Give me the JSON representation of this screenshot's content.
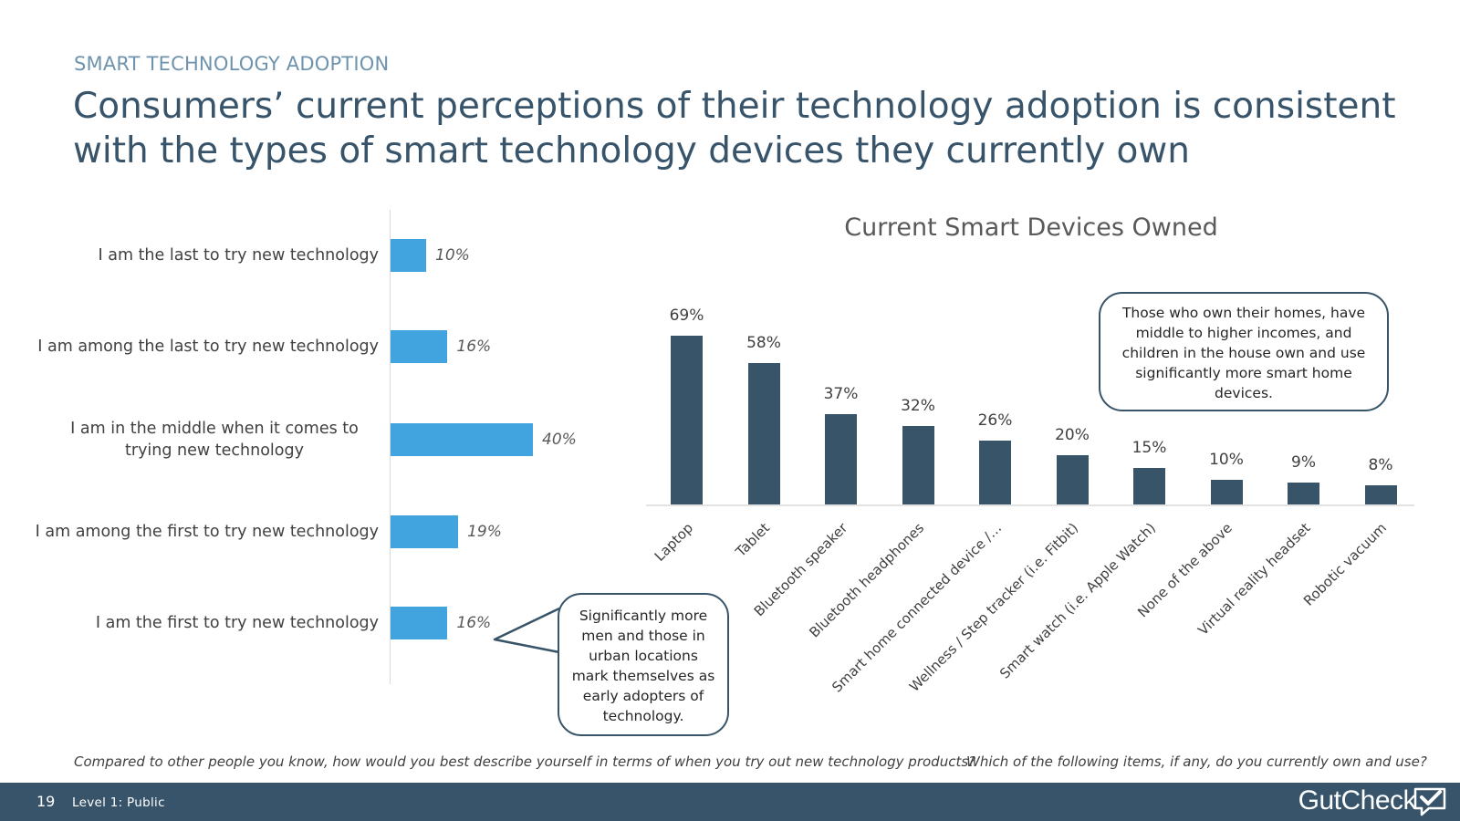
{
  "header": {
    "eyebrow": "SMART TECHNOLOGY ADOPTION",
    "headline": "Consumers’ current perceptions of their technology adoption is consistent with the types of smart technology devices they currently own"
  },
  "chart_data": [
    {
      "type": "bar",
      "orientation": "horizontal",
      "title": "",
      "categories": [
        "I am the last to try new technology",
        "I am among the last to try new technology",
        "I am  in the middle when it comes to trying new technology",
        "I am among the first to try new technology",
        "I am the first to try new technology"
      ],
      "values": [
        10,
        16,
        40,
        19,
        16
      ],
      "value_labels": [
        "10%",
        "16%",
        "40%",
        "19%",
        "16%"
      ],
      "xlim": [
        0,
        100
      ],
      "color": "#41a4df"
    },
    {
      "type": "bar",
      "orientation": "vertical",
      "title": "Current Smart Devices Owned",
      "categories": [
        "Laptop",
        "Tablet",
        "Bluetooth speaker",
        "Bluetooth headphones",
        "Smart home connected device /…",
        "Wellness / Step tracker (i.e. Fitbit)",
        "Smart watch (i.e. Apple Watch)",
        "None of the above",
        "Virtual reality headset",
        "Robotic vacuum"
      ],
      "values": [
        69,
        58,
        37,
        32,
        26,
        20,
        15,
        10,
        9,
        8
      ],
      "value_labels": [
        "69%",
        "58%",
        "37%",
        "32%",
        "26%",
        "20%",
        "15%",
        "10%",
        "9%",
        "8%"
      ],
      "ylim": [
        0,
        100
      ],
      "color": "#375468"
    }
  ],
  "callouts": {
    "left": "Significantly more men and those in urban locations mark themselves as early adopters of technology.",
    "right": "Those who own their homes, have middle to higher incomes, and children in the house own and use significantly more smart home devices."
  },
  "footnotes": {
    "left": "Compared to other people you know, how would you best describe yourself in terms of when you try out new technology products?",
    "right": "Which of the following items, if any, do you currently own and use?"
  },
  "footer": {
    "page_number": "19",
    "classification": "Level 1: Public",
    "logo_text": "GutCheck"
  },
  "colors": {
    "primary_dark": "#37546b",
    "accent_blue": "#41a4df",
    "eyebrow": "#6e93ae"
  }
}
